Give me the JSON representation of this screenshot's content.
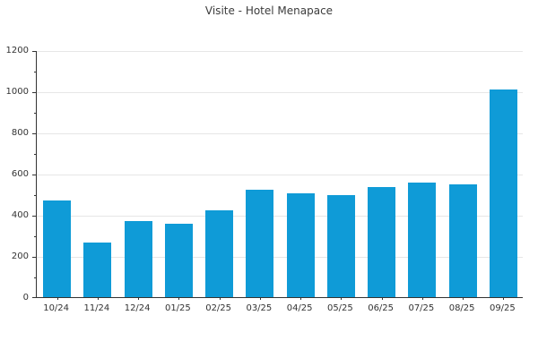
{
  "chart_data": {
    "type": "bar",
    "title": "Visite - Hotel Menapace",
    "categories": [
      "10/24",
      "11/24",
      "12/24",
      "01/25",
      "02/25",
      "03/25",
      "04/25",
      "05/25",
      "06/25",
      "07/25",
      "08/25",
      "09/25"
    ],
    "values": [
      470,
      265,
      370,
      355,
      420,
      520,
      505,
      495,
      535,
      555,
      550,
      1010
    ],
    "xlabel": "",
    "ylabel": "",
    "ylim": [
      0,
      1200
    ],
    "ytick_step": 200,
    "yminor_step": 100,
    "ytick_labels": [
      "0",
      "200",
      "400",
      "600",
      "800",
      "1000",
      "1200"
    ],
    "grid": "horizontal",
    "legend": "none",
    "bar_color": "#0f9bd7",
    "colors": {
      "grid": "#e6e6e6",
      "axis": "#333333",
      "title_text": "#3c3c3c",
      "tick_text": "#333333",
      "background": "#ffffff"
    }
  }
}
